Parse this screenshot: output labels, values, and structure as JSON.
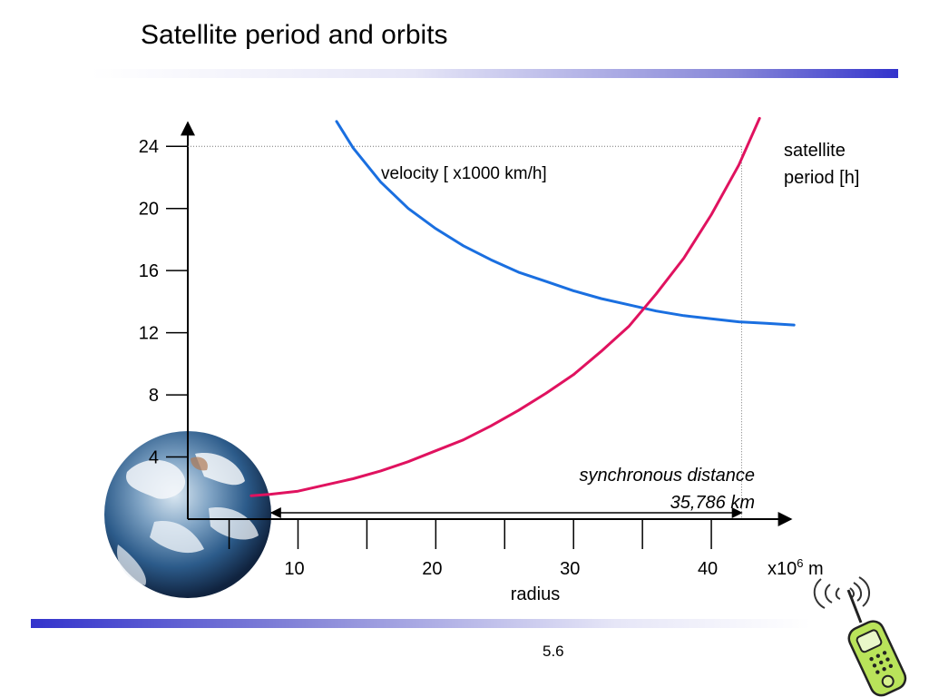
{
  "slide": {
    "title": "Satellite period and orbits",
    "page_number": "5.6"
  },
  "chart_data": {
    "type": "line",
    "x": {
      "label": "radius",
      "unit": "x10",
      "unit_exp": "6",
      "unit_suffix": " m",
      "ticks": [
        5,
        10,
        15,
        20,
        25,
        30,
        35,
        40
      ],
      "tick_labels": [
        {
          "value": 10,
          "text": "10"
        },
        {
          "value": 20,
          "text": "20"
        },
        {
          "value": 30,
          "text": "30"
        },
        {
          "value": 40,
          "text": "40"
        }
      ],
      "range": [
        2.0,
        45.0
      ]
    },
    "y": {
      "ticks": [
        4,
        8,
        12,
        16,
        20,
        24
      ],
      "tick_labels": [
        "4",
        "8",
        "12",
        "16",
        "20",
        "24"
      ],
      "range": [
        0,
        26
      ]
    },
    "series": [
      {
        "name": "velocity [ x1000 km/h]",
        "color": "#1a6fe0",
        "x": [
          12.8,
          14.0,
          16.0,
          18.0,
          20.0,
          22.0,
          24.0,
          26.0,
          28.0,
          30.0,
          32.0,
          34.0,
          36.0,
          38.0,
          40.0,
          42.0,
          44.0,
          46.0
        ],
        "y": [
          25.6,
          23.9,
          21.7,
          20.0,
          18.7,
          17.6,
          16.7,
          15.9,
          15.3,
          14.7,
          14.2,
          13.8,
          13.4,
          13.1,
          12.9,
          12.7,
          12.6,
          12.5
        ]
      },
      {
        "name": "satellite period [h]",
        "color": "#e0125f",
        "x": [
          6.6,
          8.0,
          10.0,
          12.0,
          14.0,
          16.0,
          18.0,
          20.0,
          22.0,
          24.0,
          26.0,
          28.0,
          30.0,
          32.0,
          34.0,
          36.0,
          38.0,
          40.0,
          42.0,
          43.5
        ],
        "y": [
          1.5,
          1.6,
          1.8,
          2.2,
          2.6,
          3.1,
          3.7,
          4.4,
          5.1,
          6.0,
          7.0,
          8.1,
          9.3,
          10.8,
          12.4,
          14.5,
          16.8,
          19.6,
          22.8,
          25.8
        ]
      }
    ],
    "reference": {
      "x": 42.2,
      "y": 24
    },
    "annotations": {
      "velocity_label": "velocity [ x1000 km/h]",
      "period_label_line1": "satellite",
      "period_label_line2": "period [h]",
      "sync_line1": "synchronous distance",
      "sync_line2": "35,786 km"
    },
    "grid": false
  }
}
